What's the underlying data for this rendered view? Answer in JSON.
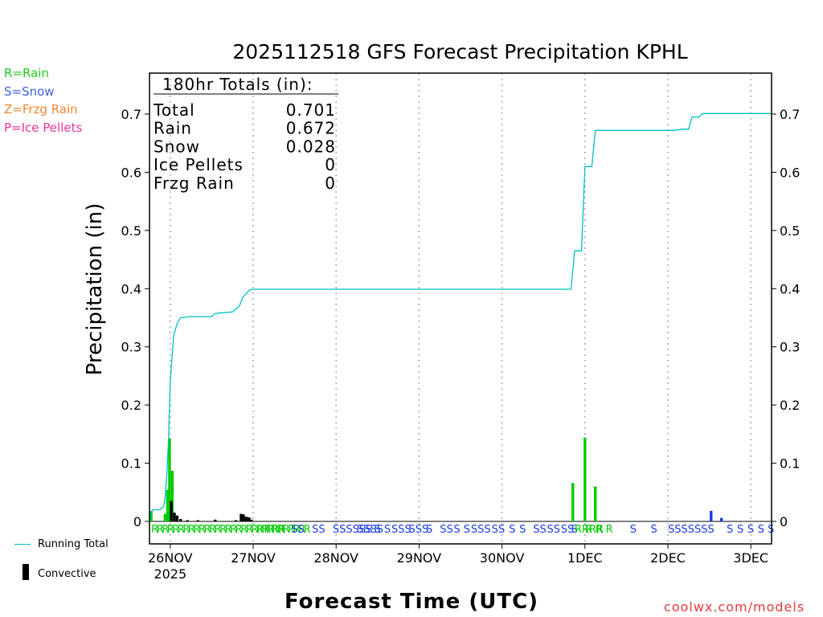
{
  "title": "2025112518 GFS Forecast Precipitation KPHL",
  "credit": "coolwx.com/models",
  "legend_types": [
    {
      "label": "R=Rain",
      "color": "#22cc22"
    },
    {
      "label": "S=Snow",
      "color": "#4060e0"
    },
    {
      "label": "Z=Frzg Rain",
      "color": "#ee8833"
    },
    {
      "label": "P=Ice Pellets",
      "color": "#ee3399"
    }
  ],
  "legend_series": {
    "running": "Running Total",
    "convective": "Convective"
  },
  "totals": {
    "heading": "180hr Totals (in):",
    "rows": [
      {
        "label": "Total",
        "value": "0.701"
      },
      {
        "label": "Rain",
        "value": "0.672"
      },
      {
        "label": "Snow",
        "value": "0.028"
      },
      {
        "label": "Ice Pellets",
        "value": "0"
      },
      {
        "label": "Frzg Rain",
        "value": "0"
      }
    ]
  },
  "colors": {
    "rain": "#00cc00",
    "snow": "#1a3be0",
    "running": "#00bfbf",
    "convective": "#000000",
    "grid": "#aaaaaa"
  },
  "chart_data": {
    "type": "bar",
    "title": "2025112518 GFS Forecast Precipitation KPHL",
    "xlabel": "Forecast Time (UTC)",
    "ylabel": "Precipitation (in)",
    "ylim": [
      0,
      0.77
    ],
    "xlim_hours": [
      0,
      180
    ],
    "yticks": [
      "0.7",
      "0.6",
      "0.5",
      "0.4",
      "0.3",
      "0.2",
      "0.1",
      "0"
    ],
    "ytick_values": [
      0.7,
      0.6,
      0.5,
      0.4,
      0.3,
      0.2,
      0.1,
      0
    ],
    "xticks": [
      {
        "hour": 6,
        "label": "26NOV",
        "sub": "2025"
      },
      {
        "hour": 30,
        "label": "27NOV"
      },
      {
        "hour": 54,
        "label": "28NOV"
      },
      {
        "hour": 78,
        "label": "29NOV"
      },
      {
        "hour": 102,
        "label": "30NOV"
      },
      {
        "hour": 126,
        "label": "1DEC"
      },
      {
        "hour": 150,
        "label": "2DEC"
      },
      {
        "hour": 174,
        "label": "3DEC"
      }
    ],
    "running_total": [
      [
        0,
        0
      ],
      [
        0.5,
        0.015
      ],
      [
        1,
        0.02
      ],
      [
        3,
        0.02
      ],
      [
        4,
        0.025
      ],
      [
        4.5,
        0.04
      ],
      [
        5,
        0.08
      ],
      [
        5.5,
        0.14
      ],
      [
        6,
        0.24
      ],
      [
        6.5,
        0.28
      ],
      [
        7,
        0.32
      ],
      [
        8,
        0.34
      ],
      [
        9,
        0.35
      ],
      [
        12,
        0.352
      ],
      [
        18,
        0.352
      ],
      [
        18.5,
        0.355
      ],
      [
        19,
        0.357
      ],
      [
        20,
        0.358
      ],
      [
        24,
        0.36
      ],
      [
        26,
        0.37
      ],
      [
        27,
        0.385
      ],
      [
        29,
        0.398
      ],
      [
        30,
        0.399
      ],
      [
        122,
        0.399
      ],
      [
        123,
        0.465
      ],
      [
        125,
        0.465
      ],
      [
        126,
        0.61
      ],
      [
        128,
        0.61
      ],
      [
        129,
        0.672
      ],
      [
        152,
        0.672
      ],
      [
        154,
        0.674
      ],
      [
        156,
        0.674
      ],
      [
        157,
        0.695
      ],
      [
        159,
        0.695
      ],
      [
        160,
        0.701
      ],
      [
        180,
        0.701
      ]
    ],
    "series": [
      {
        "name": "Rain",
        "bars": [
          [
            0.5,
            0.018
          ],
          [
            4.5,
            0.013
          ],
          [
            5.2,
            0.054
          ],
          [
            5.8,
            0.143
          ],
          [
            6.6,
            0.087
          ],
          [
            122.5,
            0.066
          ],
          [
            126,
            0.144
          ],
          [
            129,
            0.06
          ]
        ]
      },
      {
        "name": "Snow",
        "bars": [
          [
            162.5,
            0.018
          ],
          [
            165.5,
            0.006
          ]
        ]
      },
      {
        "name": "Convective",
        "bars": [
          [
            6.3,
            0.035
          ],
          [
            7.2,
            0.015
          ],
          [
            8,
            0.01
          ],
          [
            9,
            0.004
          ],
          [
            11,
            0.002
          ],
          [
            14,
            0.002
          ],
          [
            19,
            0.003
          ],
          [
            25,
            0.002
          ],
          [
            26.5,
            0.013
          ],
          [
            27.2,
            0.012
          ],
          [
            28,
            0.008
          ],
          [
            28.8,
            0.007
          ],
          [
            29.5,
            0.003
          ]
        ]
      }
    ],
    "ptype_strip": [
      {
        "text": "RRRRRRRRRRRRRRRRRRRRRRRRRRRRRR",
        "hour": 0.5,
        "type": "rain"
      },
      {
        "text": "RRRR",
        "hour": 31,
        "type": "rain"
      },
      {
        "text": "SS",
        "hour": 41,
        "type": "snow"
      },
      {
        "text": "SS",
        "hour": 47,
        "type": "snow"
      },
      {
        "text": "SSSSSS",
        "hour": 53,
        "type": "snow"
      },
      {
        "text": "SSSS",
        "hour": 60,
        "type": "snow"
      },
      {
        "text": "S S",
        "hour": 65,
        "type": "snow"
      },
      {
        "text": "SSS",
        "hour": 70,
        "type": "snow"
      },
      {
        "text": "SSS",
        "hour": 75,
        "type": "snow"
      },
      {
        "text": "S",
        "hour": 80,
        "type": "snow"
      },
      {
        "text": "SS",
        "hour": 84,
        "type": "snow"
      },
      {
        "text": "S S",
        "hour": 88,
        "type": "snow"
      },
      {
        "text": "SSS",
        "hour": 93,
        "type": "snow"
      },
      {
        "text": "SS",
        "hour": 99,
        "type": "snow"
      },
      {
        "text": "S",
        "hour": 104,
        "type": "snow"
      },
      {
        "text": "S",
        "hour": 107,
        "type": "snow"
      },
      {
        "text": "SS",
        "hour": 111,
        "type": "snow"
      },
      {
        "text": "SS",
        "hour": 115,
        "type": "snow"
      },
      {
        "text": "SS",
        "hour": 119,
        "type": "snow"
      },
      {
        "text": "S",
        "hour": 122,
        "type": "snow"
      },
      {
        "text": "RRRR",
        "hour": 123,
        "type": "rain"
      },
      {
        "text": "R",
        "hour": 126,
        "type": "rain"
      },
      {
        "text": "R",
        "hour": 129,
        "type": "rain"
      },
      {
        "text": "R",
        "hour": 132,
        "type": "rain"
      },
      {
        "text": "S",
        "hour": 139,
        "type": "snow"
      },
      {
        "text": "S",
        "hour": 145,
        "type": "snow"
      },
      {
        "text": "SSSSSSS",
        "hour": 150,
        "type": "snow"
      },
      {
        "text": "S",
        "hour": 167,
        "type": "snow"
      },
      {
        "text": "S",
        "hour": 170,
        "type": "snow"
      },
      {
        "text": "S",
        "hour": 173,
        "type": "snow"
      },
      {
        "text": "S S",
        "hour": 176,
        "type": "snow"
      }
    ]
  }
}
